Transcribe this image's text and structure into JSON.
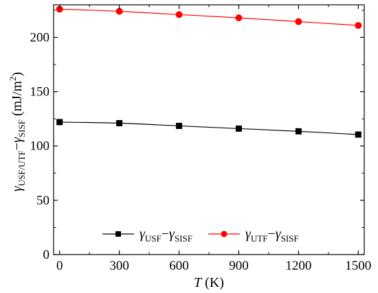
{
  "chart_data": {
    "type": "line",
    "xlabel": {
      "var": "T",
      "unit": " (K)"
    },
    "ylabel": {
      "gamma": "γ",
      "sub1": "USF/UTF",
      "minus": "−",
      "gamma2": "γ",
      "sub2": "SISF",
      "unit": " (mJ/m",
      "sup": "2",
      "close": ")"
    },
    "xlim": [
      -30,
      1530
    ],
    "ylim": [
      0,
      230
    ],
    "x_ticks": [
      0,
      300,
      600,
      900,
      1200,
      1500
    ],
    "y_ticks": [
      0,
      50,
      100,
      150,
      200
    ],
    "x_tick_labels": [
      "0",
      "300",
      "600",
      "900",
      "1200",
      "1500"
    ],
    "y_tick_labels": [
      "0",
      "50",
      "100",
      "150",
      "200"
    ],
    "grid": false,
    "legend_placement": "bottom-center",
    "series": [
      {
        "name": {
          "g": "γ",
          "s1": "USF",
          "m": "−",
          "g2": "γ",
          "s2": "SISF"
        },
        "color": "#000000",
        "marker": "square",
        "x": [
          0,
          300,
          600,
          900,
          1200,
          1500
        ],
        "y": [
          122,
          121,
          118.5,
          116,
          113.5,
          110.5
        ]
      },
      {
        "name": {
          "g": "γ",
          "s1": "UTF",
          "m": "−",
          "g2": "γ",
          "s2": "SISF"
        },
        "color": "#ff0000",
        "marker": "circle",
        "x": [
          0,
          300,
          600,
          900,
          1200,
          1500
        ],
        "y": [
          226,
          224,
          221,
          218,
          214.5,
          211
        ]
      }
    ]
  }
}
